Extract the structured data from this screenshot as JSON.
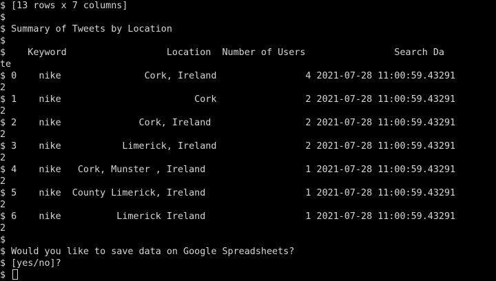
{
  "terminal": {
    "lines": [
      "$ [13 rows x 7 columns]",
      "$",
      "$ Summary of Tweets by Location",
      "$",
      "$    Keyword                  Location  Number of Users                Search Da",
      "te",
      "$ 0    nike               Cork, Ireland                4 2021-07-28 11:00:59.43291",
      "2",
      "$ 1    nike                        Cork                2 2021-07-28 11:00:59.43291",
      "2",
      "$ 2    nike              Cork, Ireland                 2 2021-07-28 11:00:59.43291",
      "2",
      "$ 3    nike           Limerick, Ireland                2 2021-07-28 11:00:59.43291",
      "2",
      "$ 4    nike   Cork, Munster , Ireland                  1 2021-07-28 11:00:59.43291",
      "2",
      "$ 5    nike  County Limerick, Ireland                  1 2021-07-28 11:00:59.43291",
      "2",
      "$ 6    nike          Limerick Ireland                  1 2021-07-28 11:00:59.43291",
      "2",
      "$",
      "$ Would you like to save data on Google Spreadsheets?",
      "$ [yes/no]?",
      "$ "
    ]
  }
}
